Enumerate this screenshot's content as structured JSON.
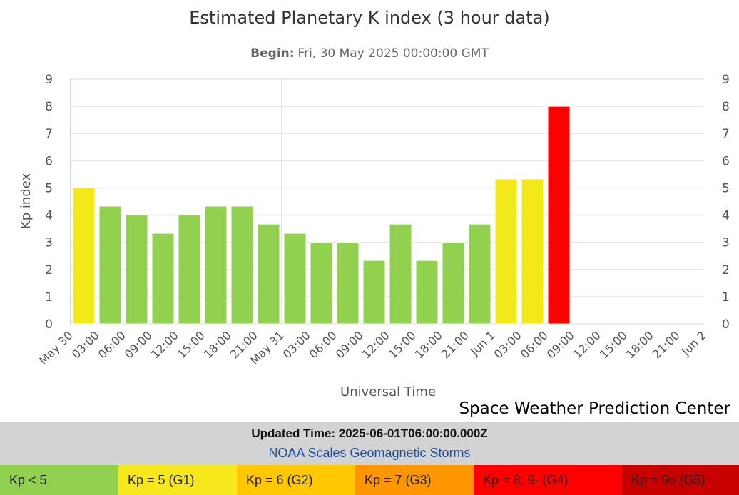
{
  "chart_data": {
    "type": "bar",
    "title": "Estimated Planetary K index (3 hour data)",
    "subtitle_label": "Begin:",
    "subtitle_value": "Fri, 30 May 2025 00:00:00 GMT",
    "xlabel": "Universal Time",
    "ylabel": "Kp index",
    "ylim": [
      0,
      9
    ],
    "y_ticks": [
      "0",
      "1",
      "2",
      "3",
      "4",
      "5",
      "6",
      "7",
      "8",
      "9"
    ],
    "x_ticks": [
      "May 30",
      "03:00",
      "06:00",
      "09:00",
      "12:00",
      "15:00",
      "18:00",
      "21:00",
      "May 31",
      "03:00",
      "06:00",
      "09:00",
      "12:00",
      "15:00",
      "18:00",
      "21:00",
      "Jun 1",
      "03:00",
      "06:00",
      "09:00",
      "12:00",
      "15:00",
      "18:00",
      "21:00",
      "Jun 2"
    ],
    "values": [
      5.0,
      4.33,
      4.0,
      3.33,
      4.0,
      4.33,
      4.33,
      3.67,
      3.33,
      3.0,
      3.0,
      2.33,
      3.67,
      2.33,
      3.0,
      3.67,
      5.33,
      5.33,
      8.0
    ],
    "colors": [
      "#f3e91a",
      "#92d050",
      "#92d050",
      "#92d050",
      "#92d050",
      "#92d050",
      "#92d050",
      "#92d050",
      "#92d050",
      "#92d050",
      "#92d050",
      "#92d050",
      "#92d050",
      "#92d050",
      "#92d050",
      "#92d050",
      "#f3e91a",
      "#f3e91a",
      "#ff0000"
    ],
    "grid": true
  },
  "credit": "Space Weather Prediction Center",
  "updated": "Updated Time: 2025-06-01T06:00:00.000Z",
  "noaa_link": "NOAA Scales Geomagnetic Storms",
  "legend": [
    {
      "label": "Kp < 5",
      "color": "#92d050"
    },
    {
      "label": "Kp = 5 (G1)",
      "color": "#f6e81c"
    },
    {
      "label": "Kp = 6 (G2)",
      "color": "#ffc800"
    },
    {
      "label": "Kp = 7 (G3)",
      "color": "#ff9600"
    },
    {
      "label": "Kp = 8, 9- (G4)",
      "color": "#ff0000"
    },
    {
      "label": "Kp = 9o (G5)",
      "color": "#c80000"
    }
  ]
}
